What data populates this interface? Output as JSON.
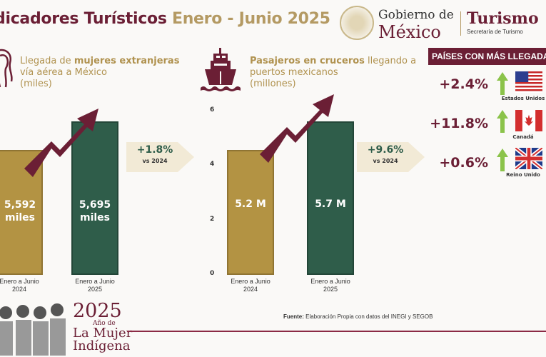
{
  "header": {
    "title_main": "dicadores Turísticos",
    "title_period": "Enero - Junio 2025",
    "logo": {
      "line1": "Gobierno de",
      "line2": "México",
      "brand": "Turismo",
      "brand_sub": "Secretaría de Turismo"
    }
  },
  "colors": {
    "maroon": "#6b1f35",
    "gold": "#b39343",
    "green": "#2f5d4a",
    "up_arrow": "#8bc34a"
  },
  "chart_data": [
    {
      "type": "bar",
      "title_plain_1": "Llegada de ",
      "title_bold": "mujeres extranjeras",
      "title_plain_2": "vía aérea  a México",
      "unit": "(miles)",
      "icon": "women-silhouettes-icon",
      "categories": [
        "Enero a Junio 2024",
        "Enero a Junio 2025"
      ],
      "category_lines": [
        [
          "Enero a Junio",
          "2024"
        ],
        [
          "Enero a Junio",
          "2025"
        ]
      ],
      "values": [
        5592,
        5695
      ],
      "data_labels": [
        [
          "5,592",
          "miles"
        ],
        [
          "5,695",
          "miles"
        ]
      ],
      "change": "+1.8%",
      "change_ref": "vs 2024",
      "trend": "up"
    },
    {
      "type": "bar",
      "title_bold": "Pasajeros en cruceros",
      "title_plain_1": " llegando a",
      "title_plain_2": "puertos mexicanos",
      "unit": "(millones)",
      "icon": "cruise-ship-icon",
      "categories": [
        "Enero a Junio 2024",
        "Enero a Junio 2025"
      ],
      "category_lines": [
        [
          "Enero a Junio",
          "2024"
        ],
        [
          "Enero a Junio",
          "2025"
        ]
      ],
      "values": [
        5.2,
        5.7
      ],
      "data_labels": [
        "5.2 M",
        "5.7 M"
      ],
      "yticks": [
        "6",
        "4",
        "2",
        "0"
      ],
      "ylim": [
        0,
        6
      ],
      "change": "+9.6%",
      "change_ref": "vs 2024",
      "trend": "up"
    }
  ],
  "countries_panel": {
    "header": "PAÍSES CON MÁS LLEGADAS",
    "rows": [
      {
        "change": "+2.4%",
        "country": "Estados Unidos",
        "flag": "usa-flag"
      },
      {
        "change": "+11.8%",
        "country": "Canadá",
        "flag": "canada-flag"
      },
      {
        "change": "+0.6%",
        "country": "Reino Unido",
        "flag": "uk-flag"
      }
    ]
  },
  "footer": {
    "source_label": "Fuente:",
    "source_text": " Elaboración Propia con datos del INEGI y SEGOB",
    "year": "2025",
    "year_sub": "Año de",
    "year_line1": "La Mujer",
    "year_line2": "Indígena"
  }
}
